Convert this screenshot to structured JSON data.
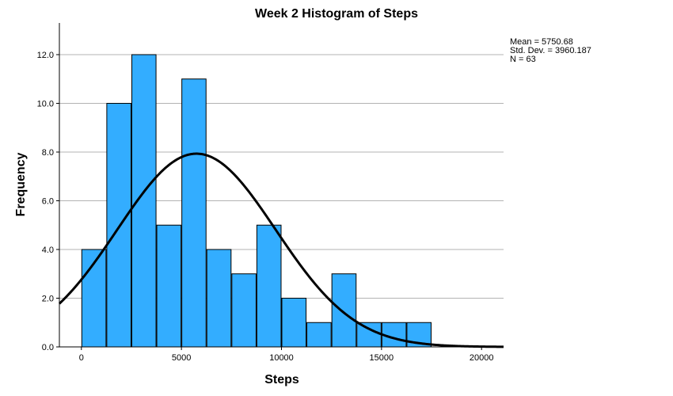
{
  "chart_data": {
    "type": "bar",
    "title": "Week 2 Histogram of Steps",
    "xlabel": "Steps",
    "ylabel": "Frequency",
    "xlim": [
      -1100,
      21100
    ],
    "ylim": [
      0,
      13.3
    ],
    "x_ticks": [
      0,
      5000,
      10000,
      15000,
      20000
    ],
    "x_tick_labels": [
      "0",
      "5000",
      "10000",
      "15000",
      "20000"
    ],
    "y_ticks": [
      0,
      2,
      4,
      6,
      8,
      10,
      12
    ],
    "y_tick_labels": [
      "0.0",
      "2.0",
      "4.0",
      "6.0",
      "8.0",
      "10.0",
      "12.0"
    ],
    "bin_width": 1250,
    "bins": [
      {
        "start": 0,
        "end": 1250,
        "count": 4
      },
      {
        "start": 1250,
        "end": 2500,
        "count": 10
      },
      {
        "start": 2500,
        "end": 3750,
        "count": 12
      },
      {
        "start": 3750,
        "end": 5000,
        "count": 5
      },
      {
        "start": 5000,
        "end": 6250,
        "count": 11
      },
      {
        "start": 6250,
        "end": 7500,
        "count": 4
      },
      {
        "start": 7500,
        "end": 8750,
        "count": 3
      },
      {
        "start": 8750,
        "end": 10000,
        "count": 5
      },
      {
        "start": 10000,
        "end": 11250,
        "count": 2
      },
      {
        "start": 11250,
        "end": 12500,
        "count": 1
      },
      {
        "start": 12500,
        "end": 13750,
        "count": 3
      },
      {
        "start": 13750,
        "end": 15000,
        "count": 1
      },
      {
        "start": 15000,
        "end": 16250,
        "count": 1
      },
      {
        "start": 16250,
        "end": 17500,
        "count": 1
      }
    ],
    "bar_color": "#33adff",
    "normal_curve": {
      "mean": 5750.68,
      "sd": 3960.187,
      "n": 63
    },
    "grid": "horizontal",
    "stats_text": {
      "mean": "Mean = 5750.68",
      "sd": "Std. Dev. = 3960.187",
      "n": "N = 63"
    }
  }
}
